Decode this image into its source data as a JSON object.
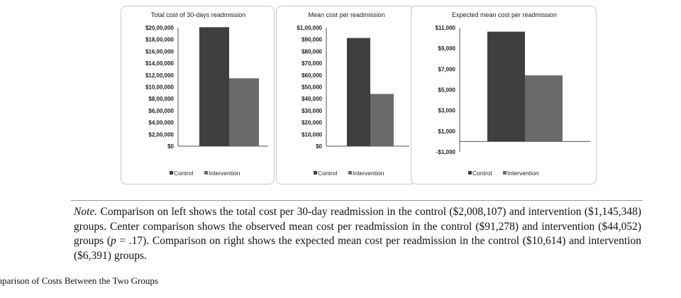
{
  "chart_data": [
    {
      "type": "bar",
      "title": "Total cost of 30-days readmission",
      "series": [
        {
          "name": "Control",
          "values": [
            2008107
          ]
        },
        {
          "name": "Intervention",
          "values": [
            1145348
          ]
        }
      ],
      "ylim": [
        0,
        2000000
      ],
      "yticks": [
        "$20,00,000",
        "$18,00,000",
        "$16,00,000",
        "$14,00,000",
        "$12,00,000",
        "$10,00,000",
        "$8,00,000",
        "$6,00,000",
        "$4,00,000",
        "$2,00,000",
        "$0"
      ],
      "legend": "bottom",
      "colors": [
        "#3f3f3f",
        "#6a6a6a"
      ]
    },
    {
      "type": "bar",
      "title": "Mean cost per readmission",
      "series": [
        {
          "name": "Control",
          "values": [
            91278
          ]
        },
        {
          "name": "Intervention",
          "values": [
            44052
          ]
        }
      ],
      "ylim": [
        0,
        100000
      ],
      "yticks": [
        "$1,00,000",
        "$90,000",
        "$80,000",
        "$70,000",
        "$60,000",
        "$50,000",
        "$40,000",
        "$30,000",
        "$20,000",
        "$10,000",
        "$0"
      ],
      "legend": "bottom",
      "colors": [
        "#3f3f3f",
        "#6a6a6a"
      ]
    },
    {
      "type": "bar",
      "title": "Expected mean cost per readmission",
      "series": [
        {
          "name": "Control",
          "values": [
            10614
          ]
        },
        {
          "name": "Intervention",
          "values": [
            6391
          ]
        }
      ],
      "ylim": [
        -1000,
        11000
      ],
      "yticks": [
        "$11,000",
        "$9,000",
        "$7,000",
        "$5,000",
        "$3,000",
        "$1,000",
        "-$1,000"
      ],
      "legend": "bottom",
      "colors": [
        "#3f3f3f",
        "#6a6a6a"
      ]
    }
  ],
  "note": {
    "lead": "Note.",
    "p1": " Comparison on left shows the total cost per 30-day readmission in the control ($2,008,107) and intervention ($1,145,348) groups. Center comparison shows the observed mean cost per readmission in the control ($91,278) and intervention ($44,052) groups (",
    "p_italic": "p",
    "p2": " = .17). Comparison on right shows the expected mean cost per readmission in the control ($10,614) and intervention ($6,391) groups."
  },
  "caption": "mparison of Costs Between the Two Groups"
}
